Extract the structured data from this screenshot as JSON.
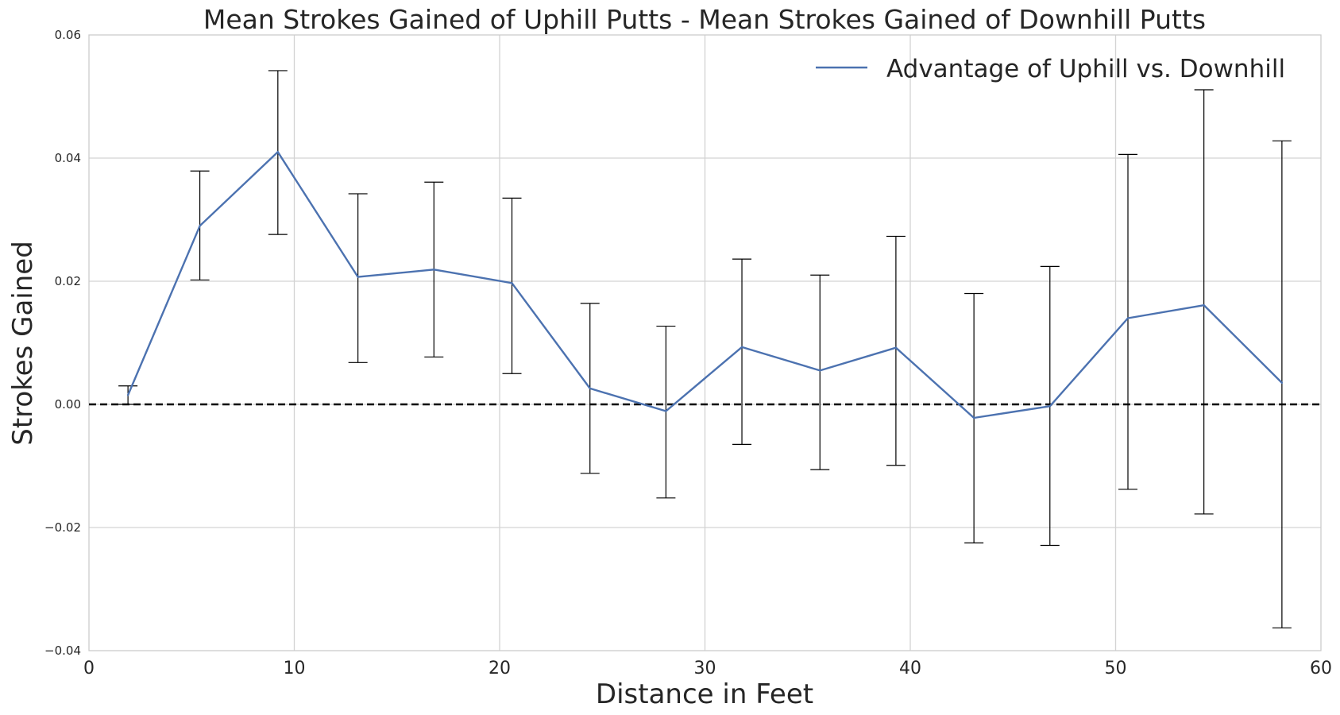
{
  "chart_data": {
    "type": "line",
    "title": "Mean Strokes Gained of Uphill Putts - Mean Strokes Gained of Downhill Putts",
    "xlabel": "Distance in Feet",
    "ylabel": "Strokes Gained",
    "xlim": [
      0,
      60
    ],
    "ylim": [
      -0.04,
      0.06
    ],
    "xticks": [
      0,
      10,
      20,
      30,
      40,
      50,
      60
    ],
    "xtick_labels": [
      "0",
      "10",
      "20",
      "30",
      "40",
      "50",
      "60"
    ],
    "yticks": [
      -0.04,
      -0.02,
      0.0,
      0.02,
      0.04,
      0.06
    ],
    "ytick_labels": [
      "−0.04",
      "−0.02",
      "0.00",
      "0.02",
      "0.04",
      "0.06"
    ],
    "grid": true,
    "legend_position": "top-right",
    "reference_line": {
      "y": 0.0,
      "style": "dashed",
      "color": "#000000"
    },
    "series": [
      {
        "name": "Advantage of Uphill vs. Downhill",
        "color": "#4c72b0",
        "x": [
          1.9,
          5.4,
          9.2,
          13.1,
          16.8,
          20.6,
          24.4,
          28.1,
          31.8,
          35.6,
          39.3,
          43.1,
          46.8,
          50.6,
          54.3,
          58.1
        ],
        "y": [
          0.0015,
          0.029,
          0.041,
          0.0207,
          0.0219,
          0.0197,
          0.0026,
          -0.0011,
          0.0093,
          0.0055,
          0.0092,
          -0.0022,
          -0.0003,
          0.014,
          0.0161,
          0.0035
        ],
        "err_low": [
          0.0,
          0.0202,
          0.0276,
          0.0068,
          0.0077,
          0.005,
          -0.0112,
          -0.0152,
          -0.0065,
          -0.0106,
          -0.0099,
          -0.0225,
          -0.0229,
          -0.0138,
          -0.0178,
          -0.0363
        ],
        "err_high": [
          0.003,
          0.0379,
          0.0542,
          0.0342,
          0.0361,
          0.0335,
          0.0164,
          0.0127,
          0.0236,
          0.021,
          0.0273,
          0.018,
          0.0224,
          0.0406,
          0.0511,
          0.0428
        ]
      }
    ],
    "errorbar_color": "#000000"
  }
}
